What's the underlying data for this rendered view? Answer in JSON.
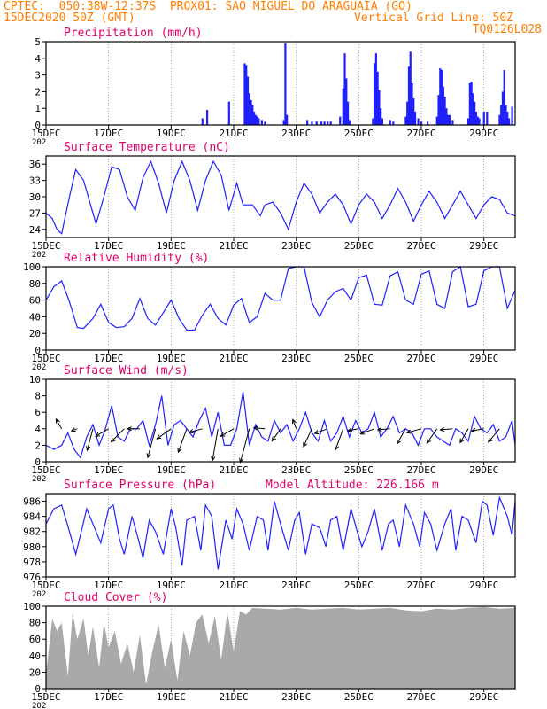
{
  "header": {
    "line1_left": "CPTEC:  050:38W-12:37S  PROX01: SAO MIGUEL DO ARAGUAIA (GO)",
    "line2_left": "15DEC2020 50Z (GMT)",
    "line2_right": "Vertical Grid Line: 50Z",
    "line3_right": "TQ0126L028",
    "text_color": "#ff7f00"
  },
  "colors": {
    "title": "#e0006a",
    "series": "#2020ff",
    "cloud": "#a9a9a9",
    "axis": "#000000"
  },
  "x_axis": {
    "tick_labels": [
      "15DEC",
      "17DEC",
      "19DEC",
      "21DEC",
      "23DEC",
      "25DEC",
      "27DEC",
      "29DEC"
    ],
    "tick_days": [
      0,
      2,
      4,
      6,
      8,
      10,
      12,
      14
    ],
    "day_range": [
      0,
      15
    ],
    "under_label": "202"
  },
  "panels": [
    {
      "key": "precip",
      "title": "Precipitation (mm/h)",
      "extra_title": ""
    },
    {
      "key": "temp",
      "title": "Surface Temperature (nC)",
      "extra_title": ""
    },
    {
      "key": "rh",
      "title": "Relative Humidity (%)",
      "extra_title": ""
    },
    {
      "key": "wind",
      "title": "Surface Wind (m/s)",
      "extra_title": ""
    },
    {
      "key": "pres",
      "title": "Surface Pressure (hPa)",
      "extra_title": "Model Altitude: 226.166 m"
    },
    {
      "key": "cloud",
      "title": "Cloud Cover (%)",
      "extra_title": ""
    }
  ],
  "chart_data": [
    {
      "id": "precip",
      "type": "bar",
      "title": "Precipitation (mm/h)",
      "ylabel": "mm/h",
      "ylim": [
        0,
        5
      ],
      "yticks": [
        0,
        1,
        2,
        3,
        4,
        5
      ],
      "x_days": [
        5.0,
        5.15,
        5.85,
        6.35,
        6.4,
        6.45,
        6.5,
        6.55,
        6.6,
        6.65,
        6.7,
        6.75,
        6.8,
        6.9,
        7.0,
        7.6,
        7.65,
        7.7,
        8.35,
        8.5,
        8.65,
        8.8,
        8.9,
        9.0,
        9.1,
        9.4,
        9.5,
        9.55,
        9.6,
        9.65,
        9.7,
        10.45,
        10.5,
        10.55,
        10.6,
        10.65,
        10.7,
        10.75,
        11.0,
        11.1,
        11.5,
        11.55,
        11.6,
        11.65,
        11.7,
        11.75,
        11.8,
        11.9,
        12.0,
        12.2,
        12.5,
        12.55,
        12.6,
        12.65,
        12.7,
        12.75,
        12.8,
        12.85,
        12.9,
        13.0,
        13.5,
        13.55,
        13.6,
        13.65,
        13.7,
        13.75,
        13.8,
        13.85,
        14.0,
        14.1,
        14.5,
        14.55,
        14.6,
        14.65,
        14.7,
        14.75,
        14.8,
        14.9
      ],
      "values": [
        0.4,
        0.9,
        1.4,
        3.7,
        3.6,
        2.9,
        1.9,
        1.5,
        1.2,
        0.8,
        0.6,
        0.5,
        0.4,
        0.3,
        0.2,
        0.3,
        4.9,
        0.6,
        0.3,
        0.2,
        0.2,
        0.2,
        0.2,
        0.2,
        0.2,
        0.5,
        2.2,
        4.3,
        2.8,
        1.4,
        0.3,
        0.4,
        3.7,
        4.3,
        3.2,
        2.1,
        1.0,
        0.4,
        0.3,
        0.2,
        0.5,
        1.4,
        3.5,
        4.4,
        2.5,
        1.6,
        0.8,
        0.4,
        0.2,
        0.2,
        0.5,
        1.8,
        3.4,
        3.3,
        2.3,
        1.7,
        1.0,
        0.6,
        0.6,
        0.3,
        0.4,
        2.5,
        2.6,
        1.9,
        1.4,
        0.8,
        0.5,
        0.4,
        0.8,
        0.8,
        0.6,
        1.2,
        2.0,
        3.3,
        1.2,
        0.8,
        0.4,
        1.1
      ]
    },
    {
      "id": "temp",
      "type": "line",
      "title": "Surface Temperature (nC)",
      "ylabel": "nC",
      "ylim": [
        22.5,
        37.5
      ],
      "yticks": [
        24,
        27,
        30,
        33,
        36
      ],
      "x_days": [
        0.0,
        0.2,
        0.35,
        0.5,
        0.75,
        0.95,
        1.2,
        1.5,
        1.6,
        1.85,
        2.1,
        2.35,
        2.6,
        2.85,
        3.1,
        3.35,
        3.6,
        3.85,
        4.1,
        4.35,
        4.6,
        4.85,
        5.1,
        5.35,
        5.6,
        5.85,
        6.1,
        6.3,
        6.6,
        6.85,
        7.0,
        7.25,
        7.5,
        7.75,
        8.0,
        8.25,
        8.5,
        8.75,
        9.0,
        9.25,
        9.5,
        9.75,
        10.0,
        10.25,
        10.5,
        10.75,
        11.0,
        11.25,
        11.5,
        11.75,
        12.0,
        12.25,
        12.5,
        12.75,
        13.0,
        13.25,
        13.5,
        13.75,
        14.0,
        14.25,
        14.5,
        14.75,
        15.0
      ],
      "values": [
        27,
        26,
        24,
        23.2,
        30,
        35,
        33,
        27,
        25,
        30,
        35.5,
        35,
        30,
        27.5,
        33.5,
        36.5,
        32.5,
        27,
        33,
        36.5,
        33,
        27.5,
        33,
        36.5,
        34,
        27.5,
        32.5,
        28.5,
        28.5,
        26.5,
        28.5,
        29,
        27,
        24,
        29,
        32.5,
        30.5,
        27,
        29,
        30.5,
        28.5,
        25,
        28.5,
        30.5,
        29,
        26,
        28.5,
        31.5,
        29,
        25.5,
        28.5,
        31,
        29,
        26,
        28.5,
        31,
        28.5,
        26,
        28.5,
        30,
        29.5,
        27,
        26.5
      ]
    },
    {
      "id": "rh",
      "type": "line",
      "title": "Relative Humidity (%)",
      "ylabel": "%",
      "ylim": [
        0,
        100
      ],
      "yticks": [
        0,
        20,
        40,
        60,
        80,
        100
      ],
      "x_days": [
        0.0,
        0.25,
        0.5,
        0.75,
        1.0,
        1.2,
        1.5,
        1.75,
        2.0,
        2.25,
        2.5,
        2.75,
        3.0,
        3.25,
        3.5,
        3.75,
        4.0,
        4.25,
        4.5,
        4.75,
        5.0,
        5.25,
        5.5,
        5.75,
        6.0,
        6.25,
        6.5,
        6.75,
        7.0,
        7.25,
        7.5,
        7.75,
        8.0,
        8.25,
        8.5,
        8.75,
        9.0,
        9.25,
        9.5,
        9.75,
        10.0,
        10.25,
        10.5,
        10.75,
        11.0,
        11.25,
        11.5,
        11.75,
        12.0,
        12.25,
        12.5,
        12.75,
        13.0,
        13.25,
        13.5,
        13.75,
        14.0,
        14.25,
        14.5,
        14.75,
        15.0
      ],
      "values": [
        60,
        76,
        83,
        58,
        27,
        26,
        38,
        55,
        33,
        27,
        28,
        38,
        62,
        38,
        30,
        45,
        60,
        38,
        24,
        24,
        42,
        55,
        38,
        30,
        54,
        62,
        33,
        40,
        68,
        60,
        60,
        98,
        100,
        100,
        57,
        40,
        60,
        70,
        74,
        60,
        87,
        90,
        55,
        54,
        89,
        94,
        60,
        55,
        91,
        95,
        55,
        50,
        94,
        100,
        52,
        55,
        95,
        100,
        100,
        50,
        72
      ]
    },
    {
      "id": "wind",
      "type": "line",
      "title": "Surface Wind (m/s)",
      "ylabel": "m/s",
      "ylim": [
        0,
        10
      ],
      "yticks": [
        0,
        2,
        4,
        6,
        8,
        10
      ],
      "x_days": [
        0.0,
        0.25,
        0.5,
        0.7,
        0.9,
        1.1,
        1.3,
        1.5,
        1.7,
        1.9,
        2.1,
        2.3,
        2.5,
        2.7,
        2.9,
        3.1,
        3.3,
        3.5,
        3.7,
        3.9,
        4.1,
        4.3,
        4.5,
        4.7,
        4.9,
        5.1,
        5.3,
        5.5,
        5.7,
        5.9,
        6.1,
        6.3,
        6.5,
        6.7,
        6.9,
        7.1,
        7.3,
        7.5,
        7.7,
        7.9,
        8.1,
        8.3,
        8.5,
        8.7,
        8.9,
        9.1,
        9.3,
        9.5,
        9.7,
        9.9,
        10.1,
        10.3,
        10.5,
        10.7,
        10.9,
        11.1,
        11.3,
        11.5,
        11.7,
        11.9,
        12.1,
        12.3,
        12.5,
        12.7,
        12.9,
        13.1,
        13.3,
        13.5,
        13.7,
        13.9,
        14.1,
        14.3,
        14.5,
        14.7,
        14.9,
        15.0
      ],
      "values": [
        2,
        1.5,
        2,
        3.5,
        1.5,
        0.5,
        3,
        4.5,
        2,
        4,
        6.8,
        3,
        2.5,
        4,
        4,
        5,
        2,
        4.5,
        8,
        2,
        4.5,
        5,
        4,
        3,
        5,
        6.5,
        3,
        6,
        2,
        2,
        4,
        8.5,
        2,
        4.5,
        3,
        2.5,
        5,
        3.5,
        4.5,
        2.5,
        4,
        6,
        3.5,
        2.5,
        5,
        2.5,
        3.5,
        5.5,
        3,
        5,
        3.5,
        4,
        6,
        3,
        4,
        5.5,
        3.5,
        4,
        3.5,
        2,
        4,
        4,
        3,
        2.5,
        2,
        4,
        3.5,
        2.5,
        5.5,
        4,
        3.5,
        4.5,
        2.5,
        3,
        5,
        2
      ],
      "arrows": [
        {
          "day": 0.5,
          "angle_deg": 120,
          "len": 0.45
        },
        {
          "day": 1.0,
          "angle_deg": 200,
          "len": 0.25
        },
        {
          "day": 1.5,
          "angle_deg": 255,
          "len": 0.9
        },
        {
          "day": 2.0,
          "angle_deg": 210,
          "len": 0.6
        },
        {
          "day": 2.5,
          "angle_deg": 225,
          "len": 0.75
        },
        {
          "day": 3.0,
          "angle_deg": 180,
          "len": 0.5
        },
        {
          "day": 3.5,
          "angle_deg": 255,
          "len": 1.2
        },
        {
          "day": 4.0,
          "angle_deg": 215,
          "len": 0.7
        },
        {
          "day": 4.5,
          "angle_deg": 250,
          "len": 1.0
        },
        {
          "day": 5.0,
          "angle_deg": 195,
          "len": 0.55
        },
        {
          "day": 5.5,
          "angle_deg": 260,
          "len": 1.3
        },
        {
          "day": 6.0,
          "angle_deg": 210,
          "len": 0.6
        },
        {
          "day": 6.5,
          "angle_deg": 255,
          "len": 1.4
        },
        {
          "day": 7.0,
          "angle_deg": 175,
          "len": 0.45
        },
        {
          "day": 7.5,
          "angle_deg": 235,
          "len": 0.6
        },
        {
          "day": 8.0,
          "angle_deg": 110,
          "len": 0.4
        },
        {
          "day": 8.5,
          "angle_deg": 245,
          "len": 0.8
        },
        {
          "day": 9.0,
          "angle_deg": 200,
          "len": 0.55
        },
        {
          "day": 9.5,
          "angle_deg": 250,
          "len": 0.9
        },
        {
          "day": 10.0,
          "angle_deg": 190,
          "len": 0.45
        },
        {
          "day": 10.5,
          "angle_deg": 200,
          "len": 0.6
        },
        {
          "day": 11.0,
          "angle_deg": 185,
          "len": 0.5
        },
        {
          "day": 11.5,
          "angle_deg": 240,
          "len": 0.7
        },
        {
          "day": 12.0,
          "angle_deg": 195,
          "len": 0.6
        },
        {
          "day": 12.5,
          "angle_deg": 235,
          "len": 0.7
        },
        {
          "day": 13.0,
          "angle_deg": 185,
          "len": 0.5
        },
        {
          "day": 13.5,
          "angle_deg": 240,
          "len": 0.65
        },
        {
          "day": 14.0,
          "angle_deg": 190,
          "len": 0.5
        },
        {
          "day": 14.5,
          "angle_deg": 230,
          "len": 0.7
        }
      ]
    },
    {
      "id": "pres",
      "type": "line",
      "title": "Surface Pressure (hPa)",
      "ylabel": "hPa",
      "ylim": [
        976,
        987
      ],
      "yticks": [
        976,
        978,
        980,
        982,
        984,
        986
      ],
      "x_days": [
        0.0,
        0.25,
        0.5,
        0.75,
        0.95,
        1.1,
        1.3,
        1.5,
        1.75,
        2.0,
        2.15,
        2.35,
        2.5,
        2.75,
        2.95,
        3.1,
        3.3,
        3.5,
        3.75,
        4.0,
        4.15,
        4.35,
        4.5,
        4.75,
        4.95,
        5.1,
        5.3,
        5.5,
        5.75,
        5.95,
        6.1,
        6.3,
        6.5,
        6.75,
        6.95,
        7.1,
        7.3,
        7.5,
        7.75,
        7.95,
        8.1,
        8.3,
        8.5,
        8.75,
        8.95,
        9.1,
        9.3,
        9.5,
        9.75,
        9.95,
        10.1,
        10.3,
        10.5,
        10.75,
        10.95,
        11.1,
        11.3,
        11.5,
        11.75,
        11.95,
        12.1,
        12.3,
        12.5,
        12.75,
        12.95,
        13.1,
        13.3,
        13.5,
        13.75,
        13.95,
        14.1,
        14.3,
        14.5,
        14.75,
        14.9,
        15.0
      ],
      "values": [
        983,
        985,
        985.5,
        982,
        979,
        981.5,
        985,
        983,
        980.5,
        985,
        985.5,
        981,
        979,
        984,
        981,
        978.5,
        983.5,
        982,
        979,
        985,
        982.5,
        977.5,
        983.5,
        984,
        979.5,
        985.5,
        984,
        977,
        983.5,
        981,
        985,
        983,
        979.5,
        984,
        983.5,
        979.5,
        986,
        983,
        979.5,
        983.5,
        984.5,
        979,
        983,
        982.5,
        980,
        983.5,
        984,
        979.5,
        985,
        982,
        980,
        982,
        985,
        979.5,
        983,
        983.5,
        980,
        985.5,
        983,
        980,
        984.5,
        983,
        979.5,
        983,
        985,
        979.5,
        984,
        983.5,
        980.5,
        986,
        985.5,
        981.5,
        986.5,
        984,
        981.5,
        986
      ]
    },
    {
      "id": "cloud",
      "type": "area",
      "title": "Cloud Cover (%)",
      "ylabel": "%",
      "ylim": [
        0,
        100
      ],
      "yticks": [
        0,
        20,
        40,
        60,
        80,
        100
      ],
      "x_days": [
        0.0,
        0.2,
        0.35,
        0.5,
        0.7,
        0.85,
        1.0,
        1.2,
        1.35,
        1.5,
        1.7,
        1.85,
        2.0,
        2.2,
        2.4,
        2.6,
        2.8,
        3.0,
        3.2,
        3.4,
        3.6,
        3.8,
        4.0,
        4.2,
        4.4,
        4.6,
        4.8,
        5.0,
        5.2,
        5.4,
        5.6,
        5.8,
        6.0,
        6.2,
        6.4,
        6.6,
        7.0,
        7.5,
        8.0,
        8.5,
        9.0,
        9.5,
        10.0,
        10.5,
        11.0,
        11.5,
        12.0,
        12.5,
        13.0,
        13.5,
        14.0,
        14.5,
        15.0
      ],
      "values": [
        18,
        85,
        70,
        80,
        15,
        92,
        60,
        85,
        40,
        75,
        25,
        80,
        50,
        70,
        30,
        55,
        20,
        65,
        5,
        45,
        78,
        25,
        60,
        10,
        70,
        40,
        80,
        90,
        55,
        88,
        35,
        93,
        45,
        94,
        90,
        98,
        97,
        96,
        98,
        96,
        97,
        98,
        96,
        97,
        98,
        95,
        94,
        97,
        96,
        98,
        99,
        97,
        98
      ]
    }
  ]
}
